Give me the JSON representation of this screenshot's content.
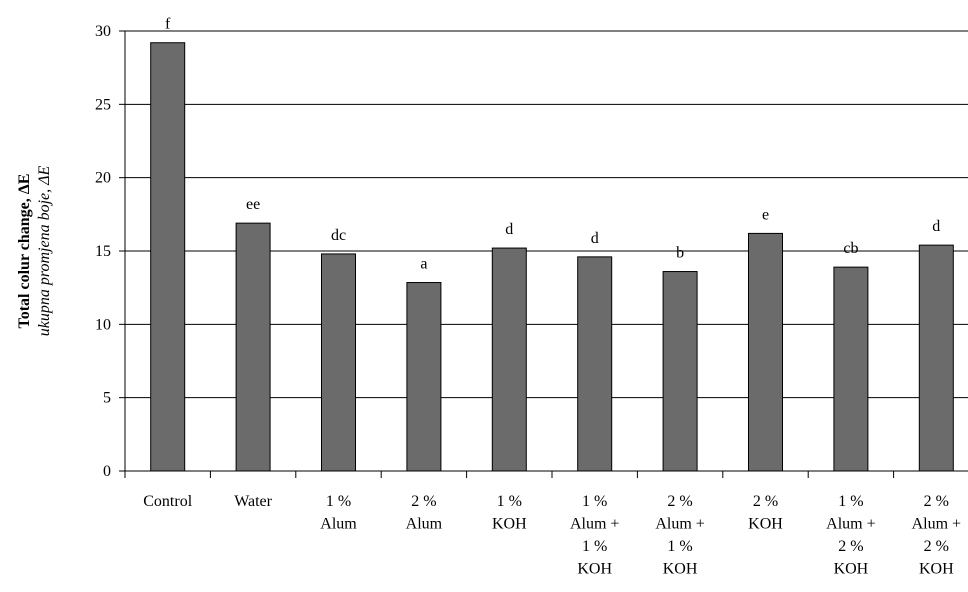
{
  "chart_data": {
    "type": "bar",
    "ylabel": "Total colur change, ΔE",
    "ylabel_secondary": "ukupna promjena boje, ΔE",
    "xlabel": "",
    "ylim": [
      0,
      30
    ],
    "yticks": [
      0,
      5,
      10,
      15,
      20,
      25,
      30
    ],
    "grid": true,
    "bar_color": "#6b6b6b",
    "categories": [
      [
        "Control"
      ],
      [
        "Water"
      ],
      [
        "1 %",
        "Alum"
      ],
      [
        "2 %",
        "Alum"
      ],
      [
        "1 %",
        "KOH"
      ],
      [
        "1 %",
        "Alum +",
        "1 %",
        "KOH"
      ],
      [
        "2 %",
        "Alum +",
        "1 %",
        "KOH"
      ],
      [
        "2 %",
        "KOH"
      ],
      [
        "1 %",
        "Alum +",
        "2 %",
        "KOH"
      ],
      [
        "2 %",
        "Alum +",
        "2 %",
        "KOH"
      ]
    ],
    "values": [
      29.2,
      16.9,
      14.8,
      12.85,
      15.2,
      14.6,
      13.6,
      16.2,
      13.9,
      15.4
    ],
    "labels": [
      "f",
      "ee",
      "dc",
      "a",
      "d",
      "d",
      "b",
      "e",
      "cb",
      "d"
    ]
  }
}
